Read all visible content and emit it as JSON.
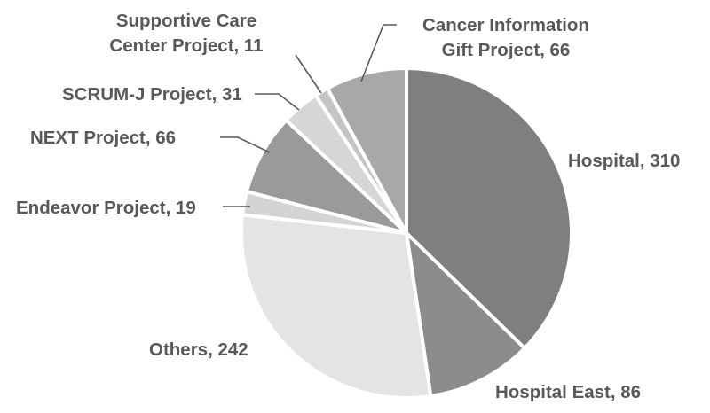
{
  "chart_data": {
    "type": "pie",
    "title": "",
    "categories": [
      "Hospital",
      "Hospital East",
      "Others",
      "Endeavor Project",
      "NEXT Project",
      "SCRUM-J Project",
      "Supportive Care Center Project",
      "Cancer Information Gift Project"
    ],
    "values": [
      310,
      86,
      242,
      19,
      66,
      31,
      11,
      66
    ],
    "colors": [
      "#7f7f7f",
      "#8c8c8c",
      "#e4e4e4",
      "#d4d4d4",
      "#9a9a9a",
      "#d6d6d6",
      "#c4c4c4",
      "#a8a8a8"
    ],
    "labels": [
      "Hospital, 310",
      "Hospital East, 86",
      "Others, 242",
      "Endeavor Project, 19",
      "NEXT Project, 66",
      "SCRUM-J Project, 31",
      "Supportive Care\nCenter Project, 11",
      "Cancer Information\nGift Project, 66"
    ],
    "start_angle": "12 o'clock",
    "direction": "clockwise",
    "legend": "none"
  }
}
